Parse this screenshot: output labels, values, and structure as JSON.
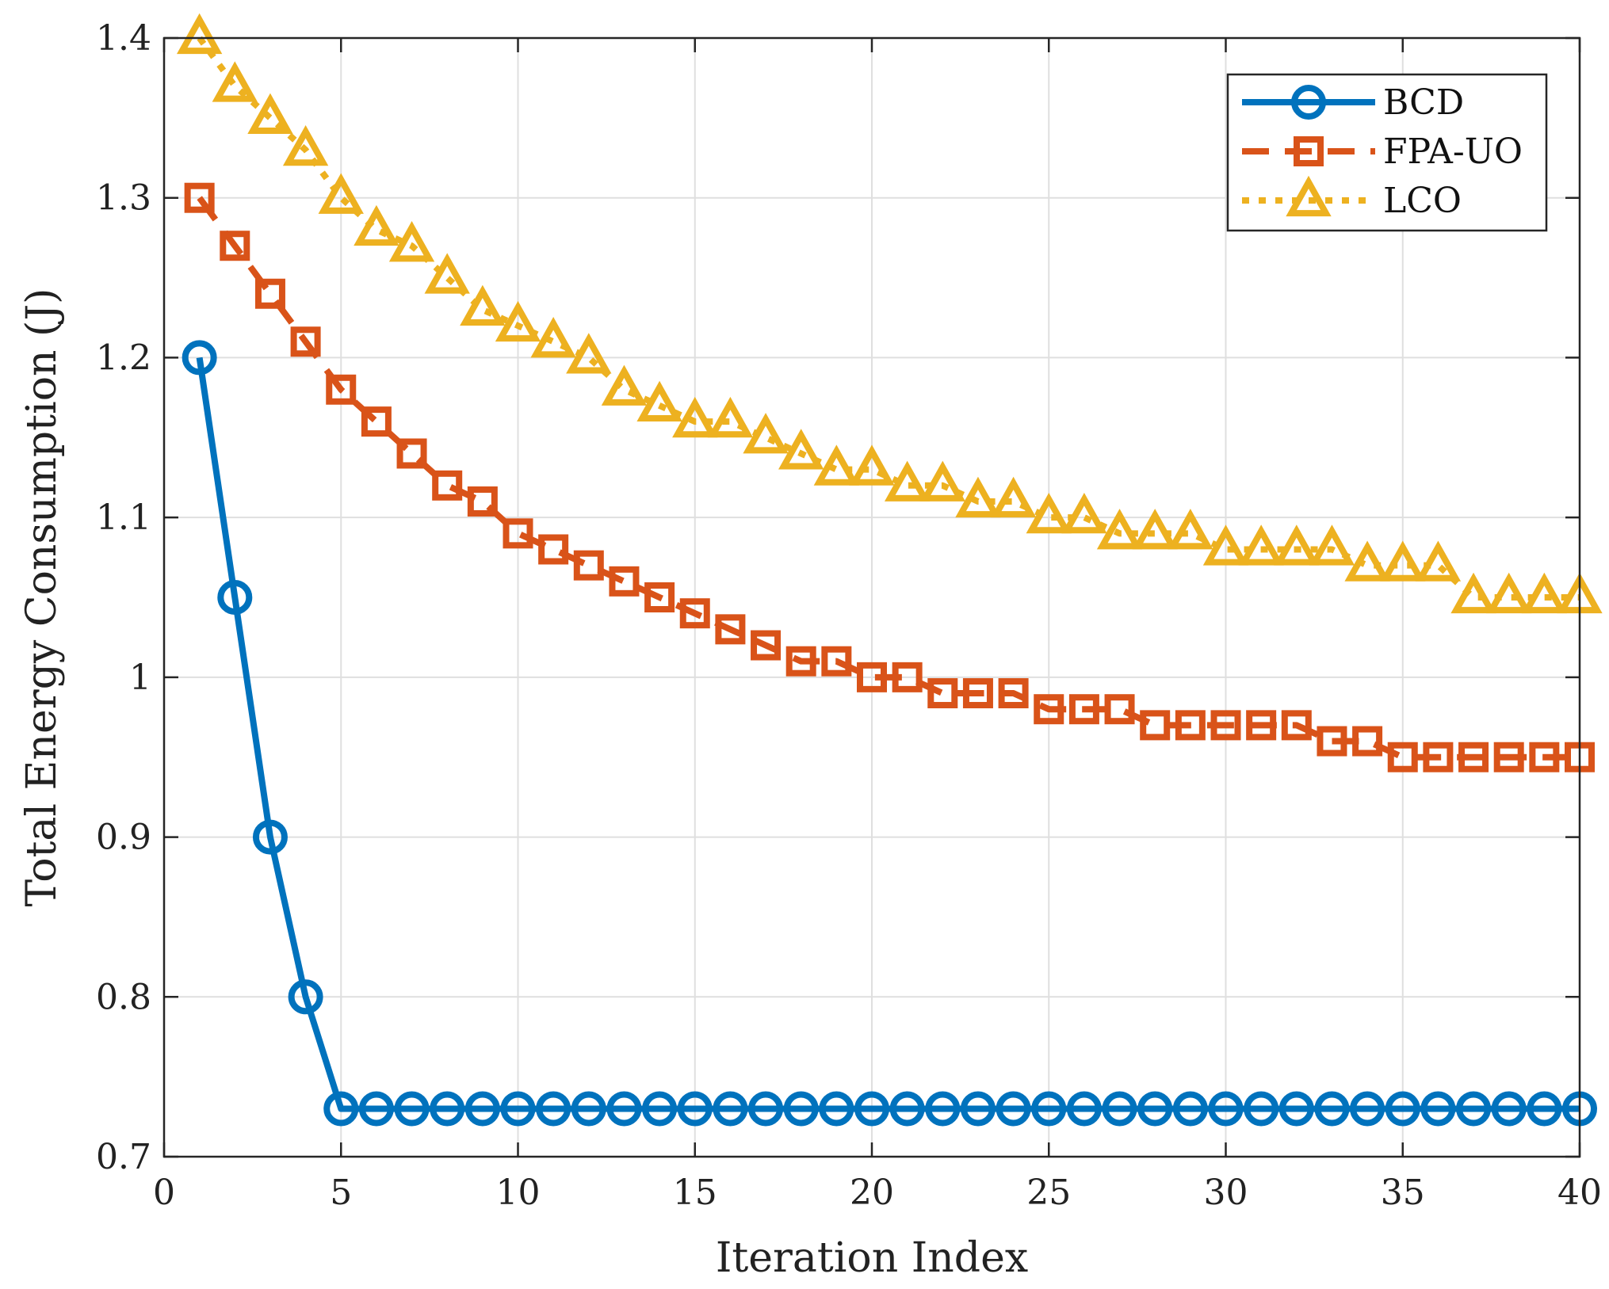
{
  "chart_data": {
    "type": "line",
    "title": "",
    "xlabel": "Iteration Index",
    "ylabel": "Total Energy Consumption (J)",
    "xlim": [
      0,
      40
    ],
    "ylim": [
      0.7,
      1.4
    ],
    "x_ticks": [
      0,
      5,
      10,
      15,
      20,
      25,
      30,
      35,
      40
    ],
    "y_ticks": [
      0.7,
      0.8,
      0.9,
      1,
      1.1,
      1.2,
      1.3,
      1.4
    ],
    "x_tick_labels": [
      "0",
      "5",
      "10",
      "15",
      "20",
      "25",
      "30",
      "35",
      "40"
    ],
    "y_tick_labels": [
      "0.7",
      "0.8",
      "0.9",
      "1",
      "1.1",
      "1.2",
      "1.3",
      "1.4"
    ],
    "grid": true,
    "legend_position": "top-right",
    "x": [
      1,
      2,
      3,
      4,
      5,
      6,
      7,
      8,
      9,
      10,
      11,
      12,
      13,
      14,
      15,
      16,
      17,
      18,
      19,
      20,
      21,
      22,
      23,
      24,
      25,
      26,
      27,
      28,
      29,
      30,
      31,
      32,
      33,
      34,
      35,
      36,
      37,
      38,
      39,
      40
    ],
    "series": [
      {
        "name": "BCD",
        "color": "#0072BD",
        "marker": "circle",
        "line_style": "solid",
        "values": [
          1.2,
          1.05,
          0.9,
          0.8,
          0.73,
          0.73,
          0.73,
          0.73,
          0.73,
          0.73,
          0.73,
          0.73,
          0.73,
          0.73,
          0.73,
          0.73,
          0.73,
          0.73,
          0.73,
          0.73,
          0.73,
          0.73,
          0.73,
          0.73,
          0.73,
          0.73,
          0.73,
          0.73,
          0.73,
          0.73,
          0.73,
          0.73,
          0.73,
          0.73,
          0.73,
          0.73,
          0.73,
          0.73,
          0.73,
          0.73
        ]
      },
      {
        "name": "FPA-UO",
        "color": "#D95319",
        "marker": "square",
        "line_style": "dashed",
        "values": [
          1.3,
          1.27,
          1.24,
          1.21,
          1.18,
          1.16,
          1.14,
          1.12,
          1.11,
          1.09,
          1.08,
          1.07,
          1.06,
          1.05,
          1.04,
          1.03,
          1.02,
          1.01,
          1.01,
          1.0,
          1.0,
          0.99,
          0.99,
          0.99,
          0.98,
          0.98,
          0.98,
          0.97,
          0.97,
          0.97,
          0.97,
          0.97,
          0.96,
          0.96,
          0.95,
          0.95,
          0.95,
          0.95,
          0.95,
          0.95
        ]
      },
      {
        "name": "LCO",
        "color": "#EDB120",
        "marker": "triangle",
        "line_style": "dotted",
        "values": [
          1.4,
          1.37,
          1.35,
          1.33,
          1.3,
          1.28,
          1.27,
          1.25,
          1.23,
          1.22,
          1.21,
          1.2,
          1.18,
          1.17,
          1.16,
          1.16,
          1.15,
          1.14,
          1.13,
          1.13,
          1.12,
          1.12,
          1.11,
          1.11,
          1.1,
          1.1,
          1.09,
          1.09,
          1.09,
          1.08,
          1.08,
          1.08,
          1.08,
          1.07,
          1.07,
          1.07,
          1.05,
          1.05,
          1.05,
          1.05
        ]
      }
    ]
  }
}
